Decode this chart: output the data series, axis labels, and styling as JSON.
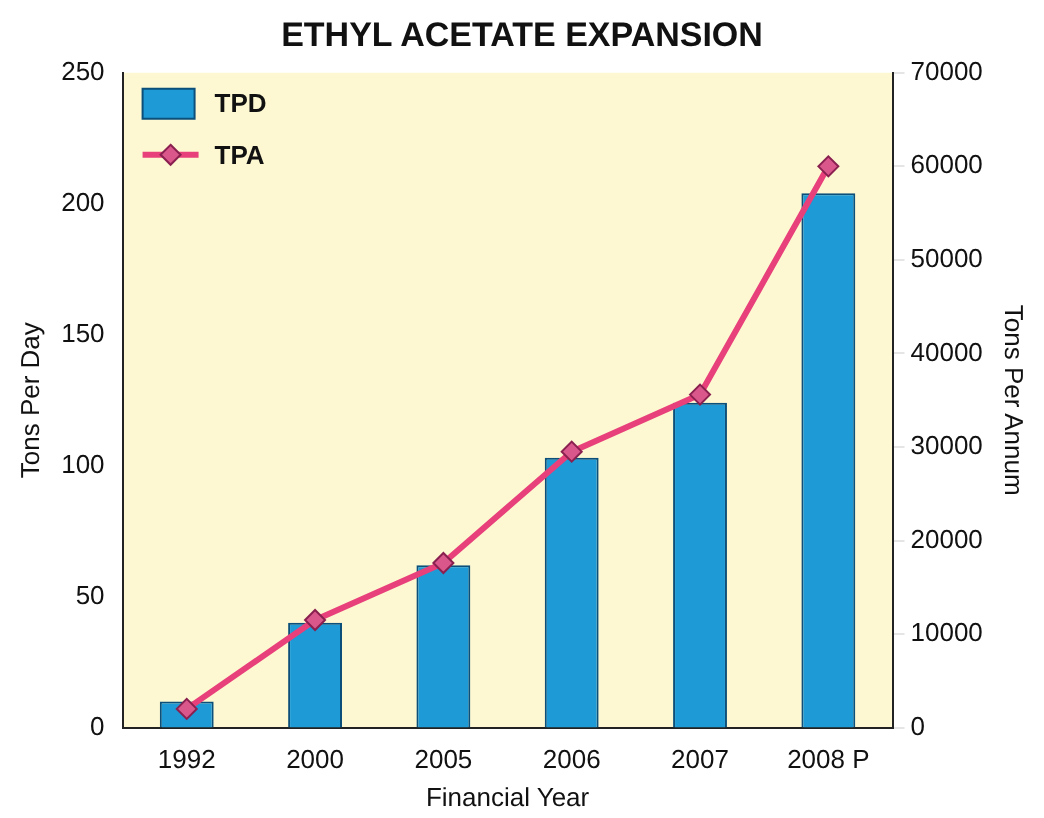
{
  "chart_data": {
    "type": "bar",
    "title": "ETHYL ACETATE EXPANSION",
    "xlabel": "Financial Year",
    "ylabel": "Tons Per Day",
    "y2label": "Tons Per Annum",
    "categories": [
      "1992",
      "2000",
      "2005",
      "2006",
      "2007",
      "2008 P"
    ],
    "series": [
      {
        "name": "TPD",
        "color": "#1e9ad6",
        "values": [
          10,
          40,
          62,
          103,
          124,
          204
        ]
      },
      {
        "name": "TPA",
        "type": "line",
        "axis": "y2",
        "color": "#e8407a",
        "marker": "diamond",
        "values": [
          2000,
          11500,
          17600,
          29500,
          35600,
          60000
        ]
      }
    ],
    "ylim": [
      0,
      250
    ],
    "yticks": [
      0,
      50,
      100,
      150,
      200,
      250
    ],
    "y2lim": [
      0,
      70000
    ],
    "y2ticks": [
      0,
      10000,
      20000,
      30000,
      40000,
      50000,
      60000,
      70000
    ],
    "grid": false,
    "legend": "top left"
  }
}
